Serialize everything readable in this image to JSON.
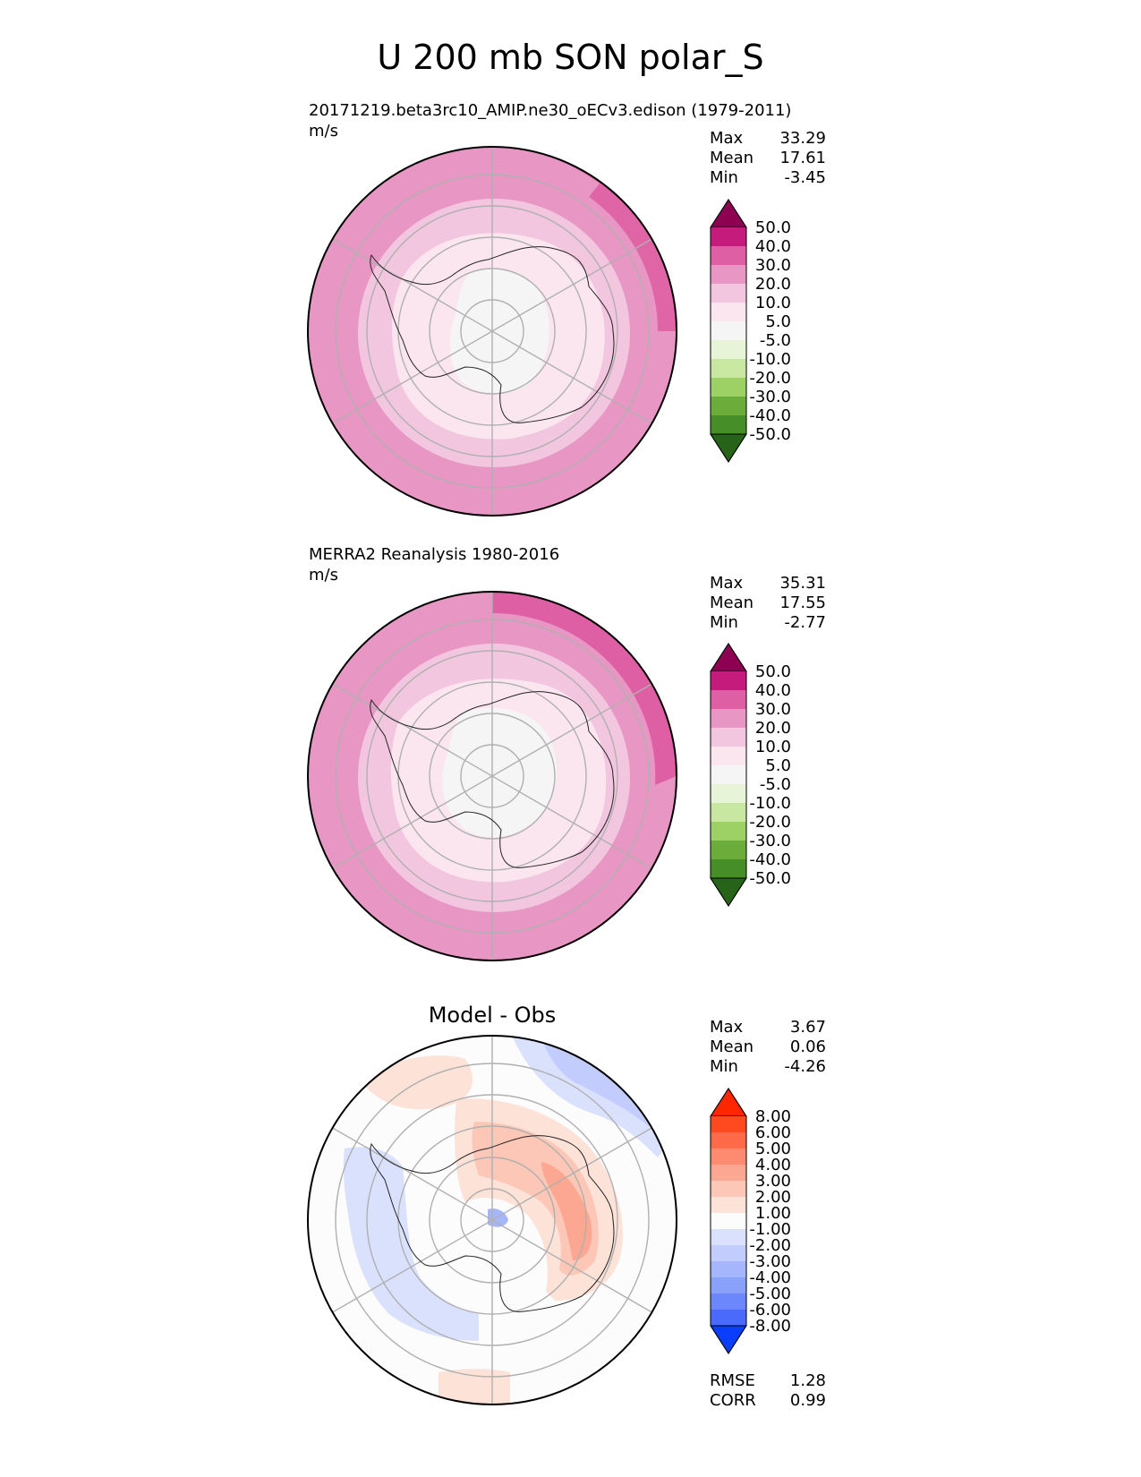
{
  "figure": {
    "title": "U 200 mb SON polar_S"
  },
  "panels": [
    {
      "id": "model",
      "title": "20171219.beta3rc10_AMIP.ne30_oECv3.edison (1979-2011)",
      "units": "m/s",
      "stats": {
        "max_label": "Max",
        "max": "33.29",
        "mean_label": "Mean",
        "mean": "17.61",
        "min_label": "Min",
        "min": "-3.45"
      }
    },
    {
      "id": "obs",
      "title": "MERRA2 Reanalysis 1980-2016",
      "units": "m/s",
      "stats": {
        "max_label": "Max",
        "max": "35.31",
        "mean_label": "Mean",
        "mean": "17.55",
        "min_label": "Min",
        "min": "-2.77"
      }
    },
    {
      "id": "diff",
      "title": "Model - Obs",
      "units": "",
      "stats": {
        "max_label": "Max",
        "max": "3.67",
        "mean_label": "Mean",
        "mean": "0.06",
        "min_label": "Min",
        "min": "-4.26"
      },
      "metrics": {
        "rmse_label": "RMSE",
        "rmse": "1.28",
        "corr_label": "CORR",
        "corr": "0.99"
      }
    }
  ],
  "chart_data": [
    {
      "type": "heatmap",
      "projection": "south polar stereographic",
      "title": "20171219.beta3rc10_AMIP.ne30_oECv3.edison (1979-2011)",
      "units": "m/s",
      "colorbar": {
        "levels": [
          "50.0",
          "40.0",
          "30.0",
          "20.0",
          "10.0",
          "5.0",
          "-5.0",
          "-10.0",
          "-20.0",
          "-30.0",
          "-40.0",
          "-50.0"
        ],
        "colors": [
          "#8e0152",
          "#c51b7d",
          "#de5fa3",
          "#e897c4",
          "#f3c6df",
          "#fbe6f0",
          "#f5f5f5",
          "#e8f4d7",
          "#c8e7a1",
          "#9dd166",
          "#6cac3a",
          "#458e28",
          "#276419"
        ]
      },
      "contour_levels_ms": [
        5,
        10,
        20,
        30,
        40
      ],
      "stats": {
        "max": 33.29,
        "mean": 17.61,
        "min": -3.45
      }
    },
    {
      "type": "heatmap",
      "projection": "south polar stereographic",
      "title": "MERRA2 Reanalysis 1980-2016",
      "units": "m/s",
      "colorbar": {
        "levels": [
          "50.0",
          "40.0",
          "30.0",
          "20.0",
          "10.0",
          "5.0",
          "-5.0",
          "-10.0",
          "-20.0",
          "-30.0",
          "-40.0",
          "-50.0"
        ],
        "colors": [
          "#8e0152",
          "#c51b7d",
          "#de5fa3",
          "#e897c4",
          "#f3c6df",
          "#fbe6f0",
          "#f5f5f5",
          "#e8f4d7",
          "#c8e7a1",
          "#9dd166",
          "#6cac3a",
          "#458e28",
          "#276419"
        ]
      },
      "contour_levels_ms": [
        5,
        10,
        20,
        30,
        40
      ],
      "stats": {
        "max": 35.31,
        "mean": 17.55,
        "min": -2.77
      }
    },
    {
      "type": "heatmap",
      "projection": "south polar stereographic",
      "title": "Model - Obs",
      "colorbar": {
        "levels": [
          "8.00",
          "6.00",
          "5.00",
          "4.00",
          "3.00",
          "2.00",
          "1.00",
          "-1.00",
          "-2.00",
          "-3.00",
          "-4.00",
          "-5.00",
          "-6.00",
          "-8.00"
        ],
        "colors": [
          "#ff2600",
          "#ff4a1f",
          "#ff6a48",
          "#fe8a70",
          "#fba791",
          "#fcc7b6",
          "#fde2d8",
          "#fcfcfc",
          "#dae1fd",
          "#c3cdfd",
          "#a6b6fc",
          "#8aa1fc",
          "#6c87fb",
          "#4a6afb",
          "#0a3efa"
        ]
      },
      "stats": {
        "max": 3.67,
        "mean": 0.06,
        "min": -4.26
      },
      "metrics": {
        "rmse": 1.28,
        "corr": 0.99
      }
    }
  ]
}
